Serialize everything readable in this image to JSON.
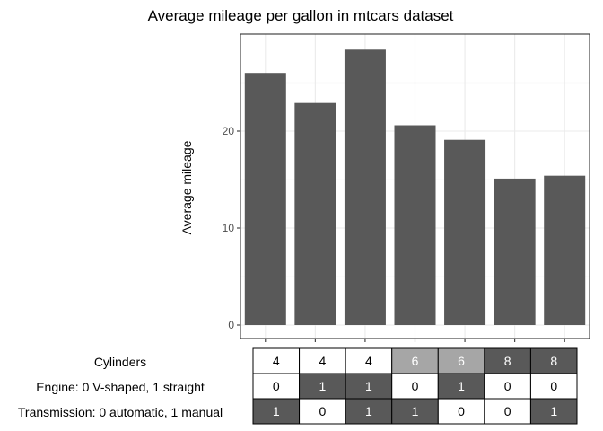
{
  "chart_data": {
    "type": "bar",
    "title": "Average mileage per gallon in mtcars dataset",
    "xlabel": "",
    "ylabel": "Average mileage",
    "ylim": [
      0,
      30
    ],
    "yticks": [
      0,
      10,
      20
    ],
    "grid": true,
    "categories": [
      "4/0/1",
      "4/1/0",
      "4/1/1",
      "6/0/1",
      "6/1/0",
      "8/0/0",
      "8/0/1"
    ],
    "values": [
      26.0,
      22.9,
      28.4,
      20.6,
      19.1,
      15.1,
      15.4
    ],
    "bar_color": "#595959"
  },
  "table": {
    "rows": [
      {
        "label": "Cylinders",
        "values": [
          "4",
          "4",
          "4",
          "6",
          "6",
          "8",
          "8"
        ]
      },
      {
        "label": "Engine: 0 V-shaped, 1 straight",
        "values": [
          "0",
          "1",
          "1",
          "0",
          "1",
          "0",
          "0"
        ]
      },
      {
        "label": "Transmission: 0 automatic, 1 manual",
        "values": [
          "1",
          "0",
          "1",
          "1",
          "0",
          "0",
          "1"
        ]
      }
    ],
    "cell_colors": {
      "4": "#ffffff",
      "6": "#a6a6a6",
      "8": "#595959",
      "0": "#ffffff",
      "1": "#595959"
    }
  }
}
